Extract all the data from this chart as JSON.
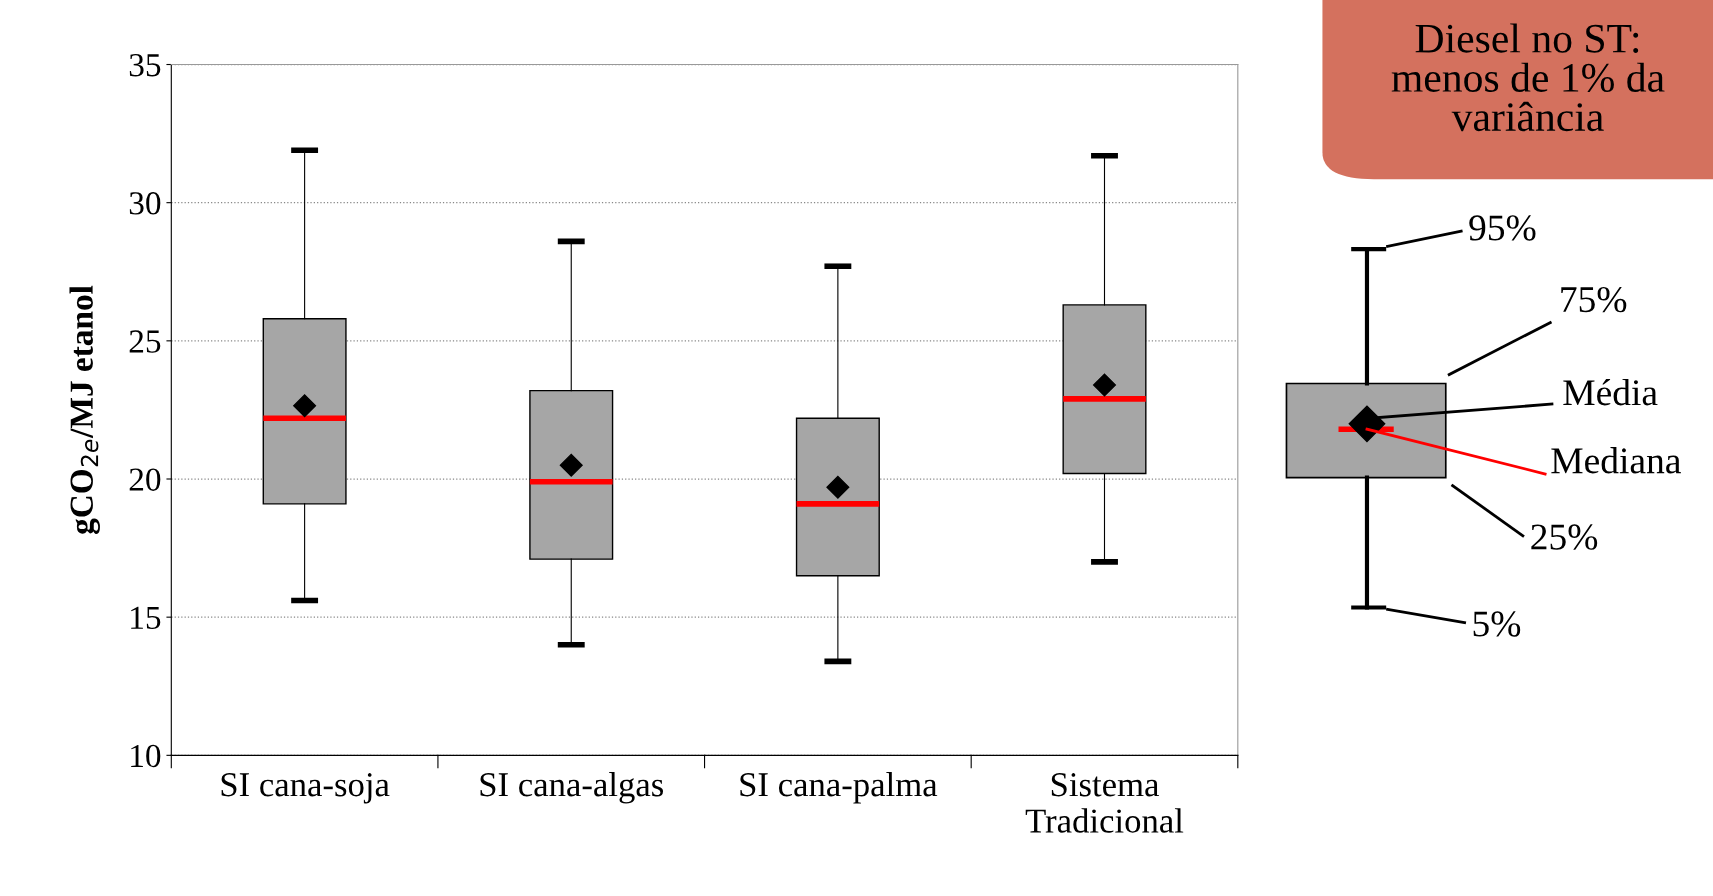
{
  "chart_data": {
    "type": "box",
    "ylabel": "gCO$_{2e}$/MJ etanol",
    "categories": [
      "SI cana-soja",
      "SI cana-algas",
      "SI cana-palma",
      "Sistema\nTradicional"
    ],
    "series": [
      {
        "color": "#a6a6a6",
        "boxes": [
          {
            "low": 15.6,
            "q1": 19.1,
            "median": 22.2,
            "q3": 25.8,
            "high": 31.9,
            "mean": 22.65
          },
          {
            "low": 14.0,
            "q1": 17.1,
            "median": 19.9,
            "q3": 23.2,
            "high": 28.6,
            "mean": 20.5
          },
          {
            "low": 13.4,
            "q1": 16.5,
            "median": 19.1,
            "q3": 22.2,
            "high": 27.7,
            "mean": 19.7
          },
          {
            "low": 17.0,
            "q1": 20.2,
            "median": 22.9,
            "q3": 26.3,
            "high": 31.7,
            "mean": 23.4
          }
        ]
      }
    ],
    "ylim": [
      10,
      35
    ],
    "yticks": [
      10,
      15,
      20,
      25,
      30,
      35
    ],
    "grid": "y",
    "legend": false,
    "annotations": [
      "Diesel no ST:\nmenos de 1% da\nvariância",
      "95%",
      "75%",
      "Média",
      "Mediana",
      "25%",
      "5%"
    ]
  }
}
